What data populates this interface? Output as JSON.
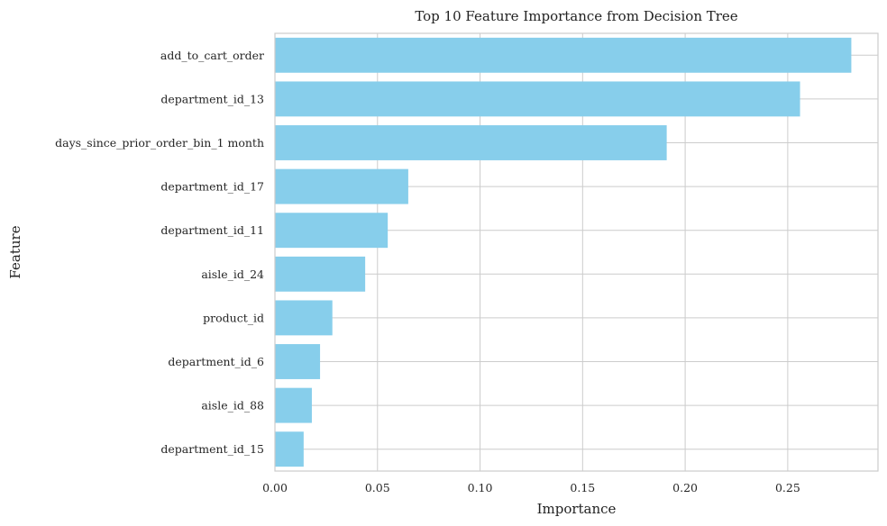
{
  "chart_data": {
    "type": "bar",
    "orientation": "horizontal",
    "title": "Top 10 Feature Importance from Decision Tree",
    "xlabel": "Importance",
    "ylabel": "Feature",
    "xlim": [
      0,
      0.294
    ],
    "xticks": [
      0.0,
      0.05,
      0.1,
      0.15,
      0.2,
      0.25
    ],
    "xtick_labels": [
      "0.00",
      "0.05",
      "0.10",
      "0.15",
      "0.20",
      "0.25"
    ],
    "categories": [
      "add_to_cart_order",
      "department_id_13",
      "days_since_prior_order_bin_1 month",
      "department_id_17",
      "department_id_11",
      "aisle_id_24",
      "product_id",
      "department_id_6",
      "aisle_id_88",
      "department_id_15"
    ],
    "values": [
      0.281,
      0.256,
      0.191,
      0.065,
      0.055,
      0.044,
      0.028,
      0.022,
      0.018,
      0.014
    ],
    "bar_color": "#87CEEB",
    "grid": true,
    "legend": null
  }
}
